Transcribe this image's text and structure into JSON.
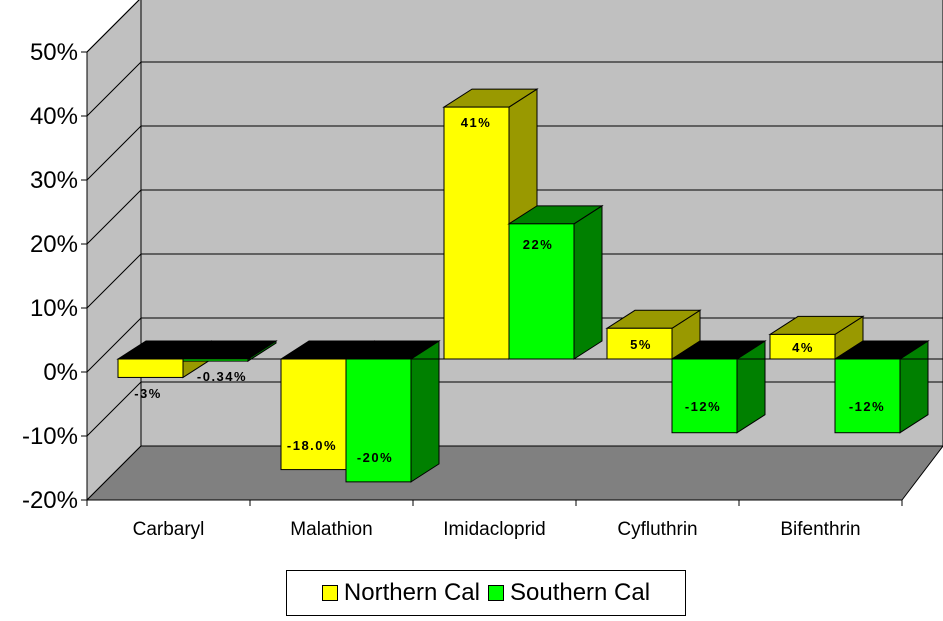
{
  "chart_data": {
    "type": "bar",
    "title": "",
    "xlabel": "",
    "ylabel": "",
    "categories": [
      "Carbaryl",
      "Malathion",
      "Imidacloprid",
      "Cyfluthrin",
      "Bifenthrin"
    ],
    "series": [
      {
        "name": "Northern Cal",
        "values": [
          -3,
          -18,
          41,
          5,
          4
        ],
        "labels": [
          "-3%",
          "-18.0%",
          "41%",
          "5%",
          "4%"
        ],
        "color": "#FFFF00",
        "side_color": "#999900"
      },
      {
        "name": "Southern Cal",
        "values": [
          -0.34,
          -20,
          22,
          -12,
          -12
        ],
        "labels": [
          "-0.34%",
          "-20%",
          "22%",
          "-12%",
          "-12%"
        ],
        "color": "#00FF00",
        "side_color": "#008000"
      }
    ],
    "ylim": [
      -20,
      50
    ],
    "yticks": [
      "-20%",
      "-10%",
      "0%",
      "10%",
      "20%",
      "30%",
      "40%",
      "50%"
    ],
    "grid": true,
    "legend_position": "bottom",
    "style": "3d-clustered-column"
  }
}
